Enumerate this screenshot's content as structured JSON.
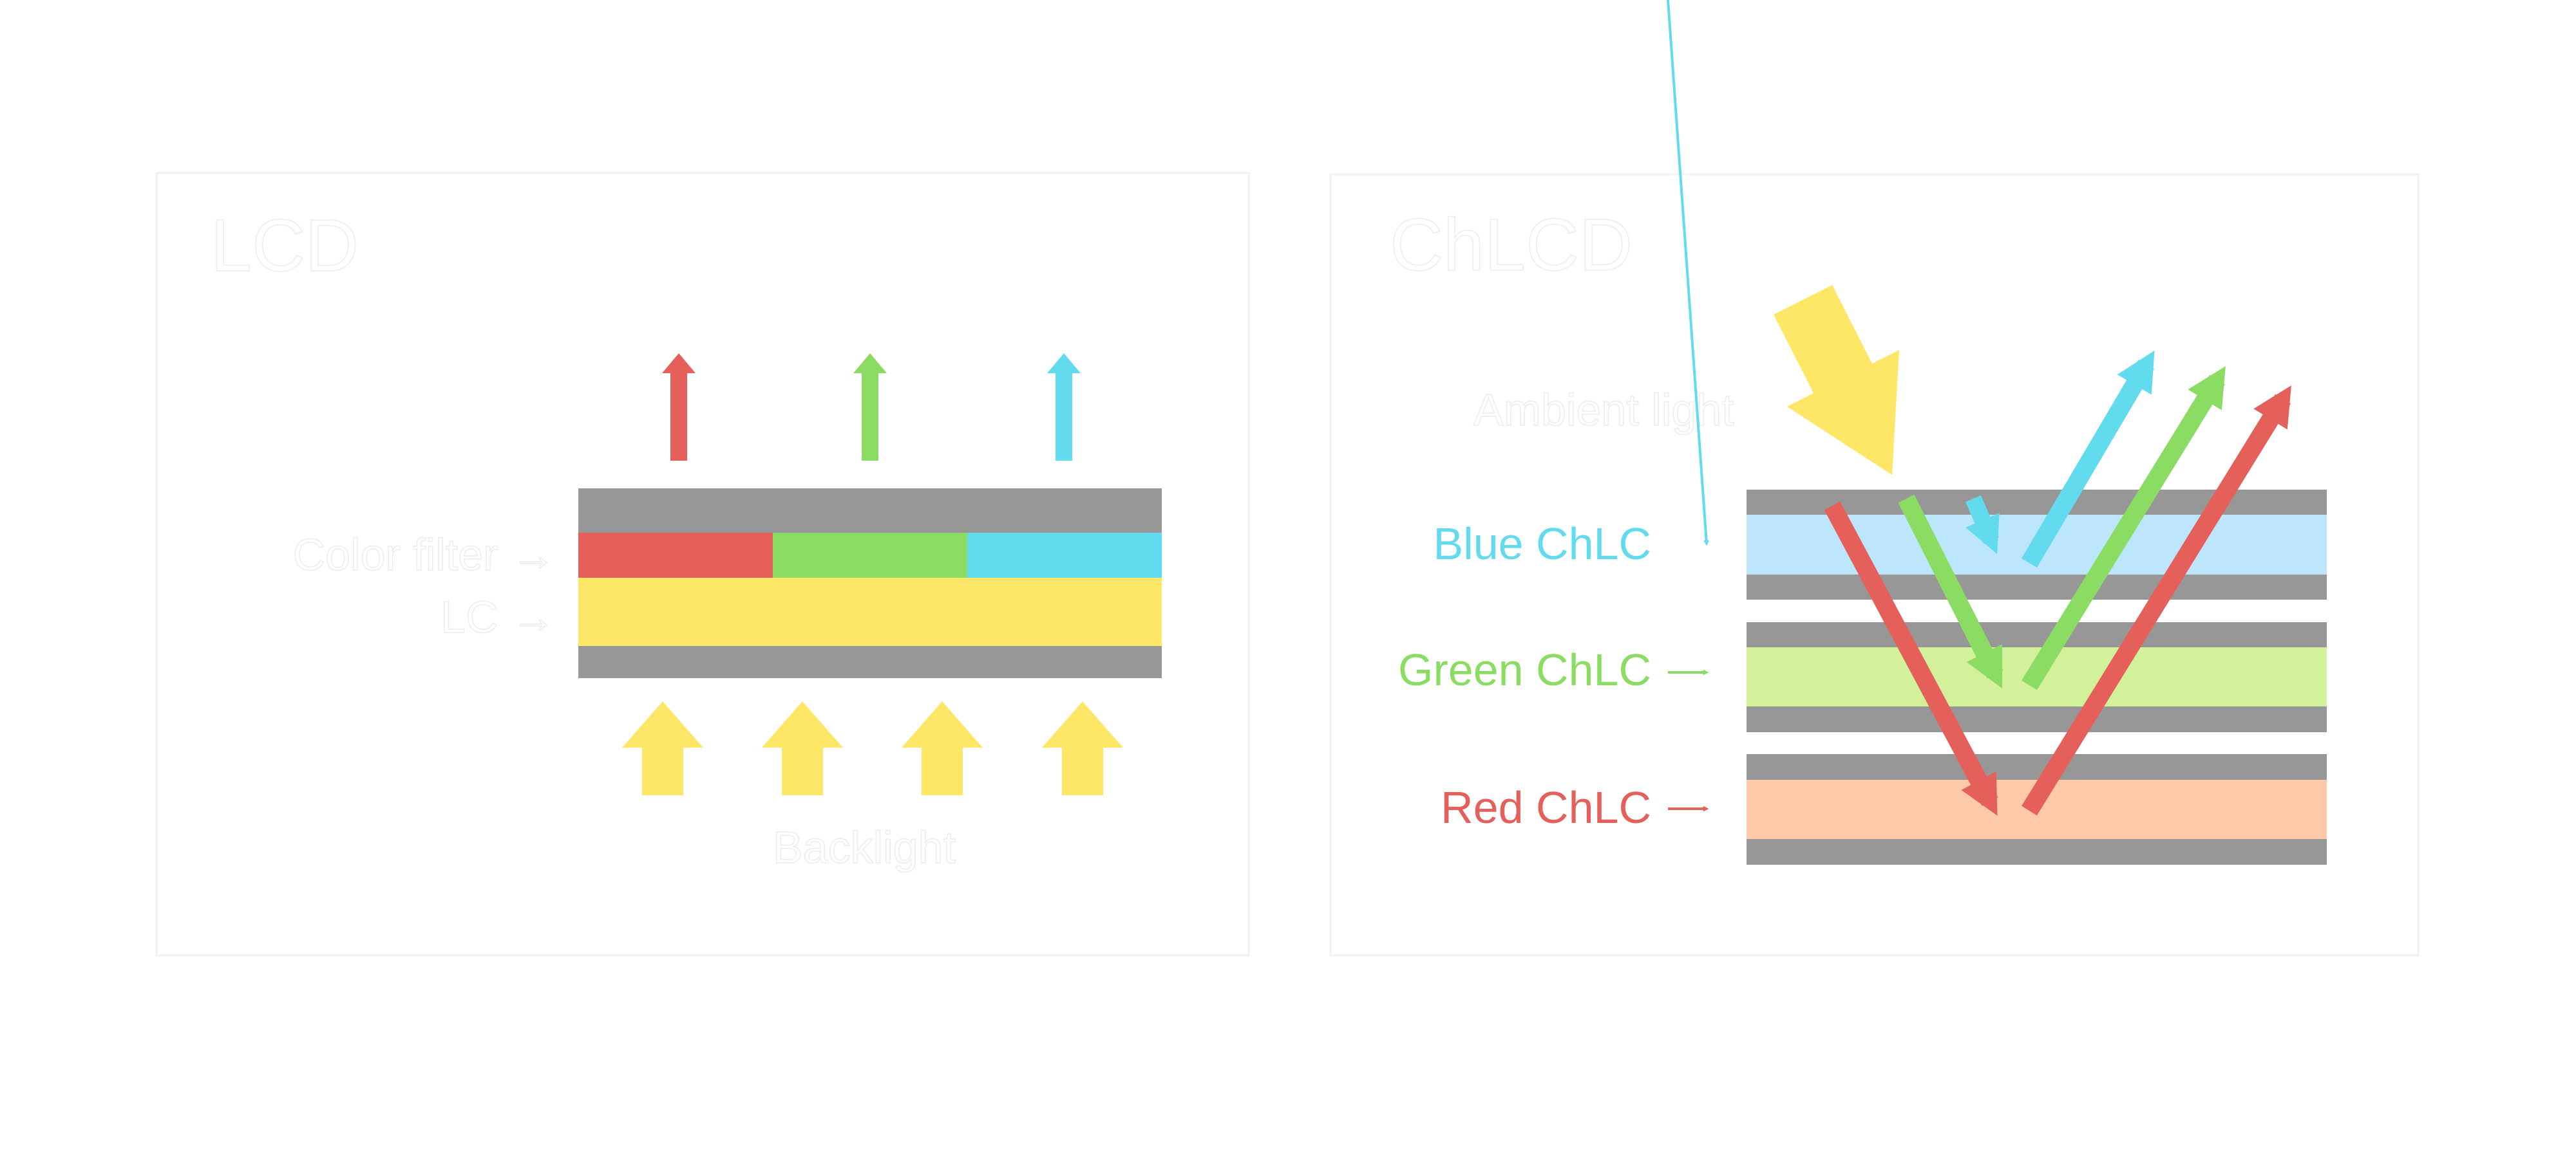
{
  "colors": {
    "red": "#e5605a",
    "green": "#8adc62",
    "cyan": "#63dbef",
    "yellow": "#fee666",
    "gray": "#979797",
    "blue_layer": "#bde6fd",
    "green_layer": "#d3f09a",
    "red_layer": "#fdc9a9"
  },
  "lcd": {
    "title": "LCD",
    "color_filter_label": "Color filter →",
    "lc_label": "LC →",
    "backlight_label": "Backlight"
  },
  "chlcd": {
    "title": "ChLCD",
    "ambient_label": "Ambient light",
    "layers": [
      {
        "label": "Blue ChLC"
      },
      {
        "label": "Green ChLC"
      },
      {
        "label": "Red ChLC"
      }
    ]
  }
}
